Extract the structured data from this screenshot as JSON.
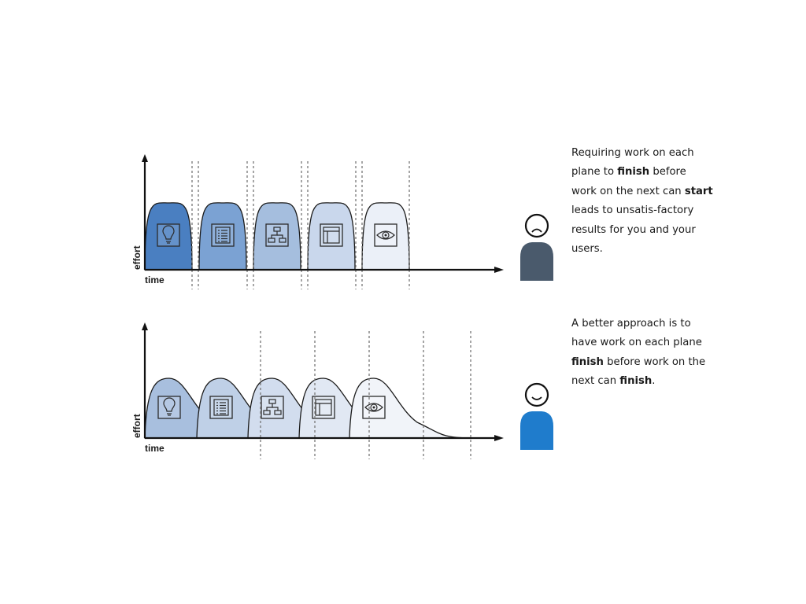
{
  "panels": [
    {
      "id": "top",
      "axis": {
        "y_label": "effort",
        "x_label": "time"
      },
      "planes": [
        {
          "icon": "lightbulb-icon",
          "color": "#4a7fc1"
        },
        {
          "icon": "list-icon",
          "color": "#7ba2d3"
        },
        {
          "icon": "flowchart-icon",
          "color": "#a5bede"
        },
        {
          "icon": "wireframe-icon",
          "color": "#c9d7ec"
        },
        {
          "icon": "eye-icon",
          "color": "#ebf0f8"
        }
      ],
      "person": {
        "mood": "frown",
        "shirt_color": "#4a5a6c"
      },
      "caption_parts": [
        {
          "text": "Requiring work on each plane to "
        },
        {
          "text": "finish",
          "bold": true
        },
        {
          "text": " before work on the next can "
        },
        {
          "text": "start",
          "bold": true
        },
        {
          "text": " leads to unsatis-factory results for you and your users."
        }
      ]
    },
    {
      "id": "bottom",
      "axis": {
        "y_label": "effort",
        "x_label": "time"
      },
      "planes": [
        {
          "icon": "lightbulb-icon",
          "color": "#a8bfde"
        },
        {
          "icon": "list-icon",
          "color": "#bfd0e7"
        },
        {
          "icon": "flowchart-icon",
          "color": "#d2ddee"
        },
        {
          "icon": "wireframe-icon",
          "color": "#e1e8f3"
        },
        {
          "icon": "eye-icon",
          "color": "#f1f4f9"
        }
      ],
      "person": {
        "mood": "smile",
        "shirt_color": "#1f7ccc"
      },
      "caption_parts": [
        {
          "text": "A better approach is to have work on each plane "
        },
        {
          "text": "finish",
          "bold": true
        },
        {
          "text": " before work on the next can "
        },
        {
          "text": "finish",
          "bold": true
        },
        {
          "text": "."
        }
      ]
    }
  ]
}
